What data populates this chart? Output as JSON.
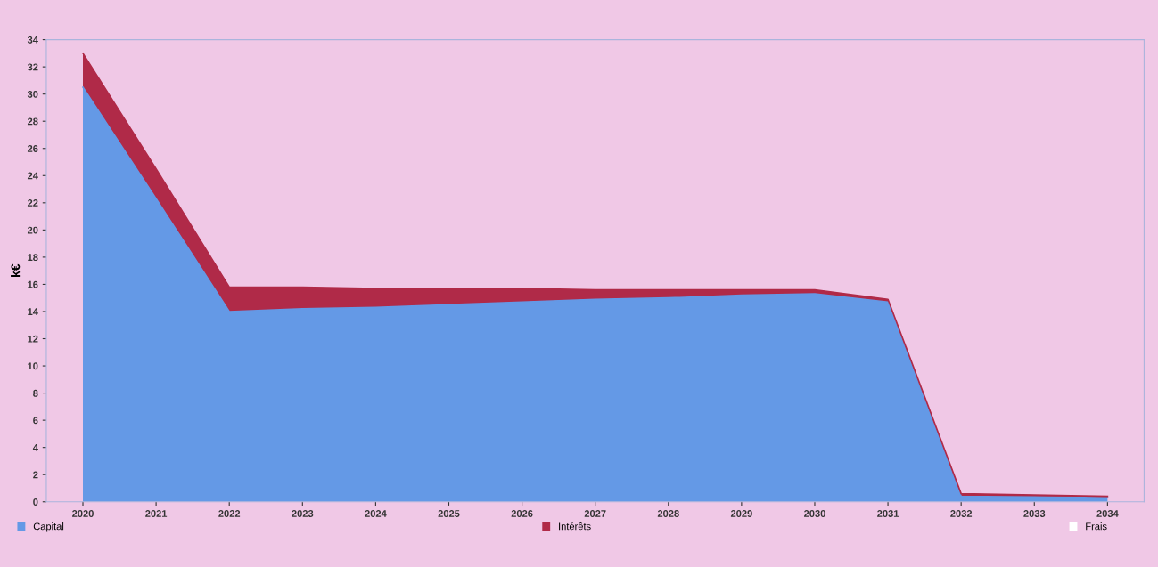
{
  "chart_data": {
    "type": "area",
    "stacked": true,
    "ylabel": "k€",
    "categories": [
      "2020",
      "2021",
      "2022",
      "2023",
      "2024",
      "2025",
      "2026",
      "2027",
      "2028",
      "2029",
      "2030",
      "2031",
      "2032",
      "2033",
      "2034"
    ],
    "series": [
      {
        "name": "Capital",
        "color": "#6499e6",
        "values": [
          30.5,
          22.3,
          14.0,
          14.2,
          14.3,
          14.5,
          14.7,
          14.9,
          15.0,
          15.2,
          15.3,
          14.7,
          0.4,
          0.35,
          0.3
        ]
      },
      {
        "name": "Intérêts",
        "color": "#b02a48",
        "values": [
          2.5,
          2.2,
          1.8,
          1.6,
          1.4,
          1.2,
          1.0,
          0.7,
          0.6,
          0.4,
          0.3,
          0.2,
          0.2,
          0.15,
          0.1
        ]
      },
      {
        "name": "Frais",
        "color": "#ffffff",
        "values": [
          null,
          null,
          null,
          null,
          null,
          null,
          null,
          null,
          null,
          null,
          null,
          null,
          null,
          null,
          null
        ]
      }
    ],
    "ylim": [
      0,
      34
    ],
    "yticks": [
      0,
      2,
      4,
      6,
      8,
      10,
      12,
      14,
      16,
      18,
      20,
      22,
      24,
      26,
      28,
      30,
      32,
      34
    ],
    "grid": false,
    "legend": "bottom"
  }
}
